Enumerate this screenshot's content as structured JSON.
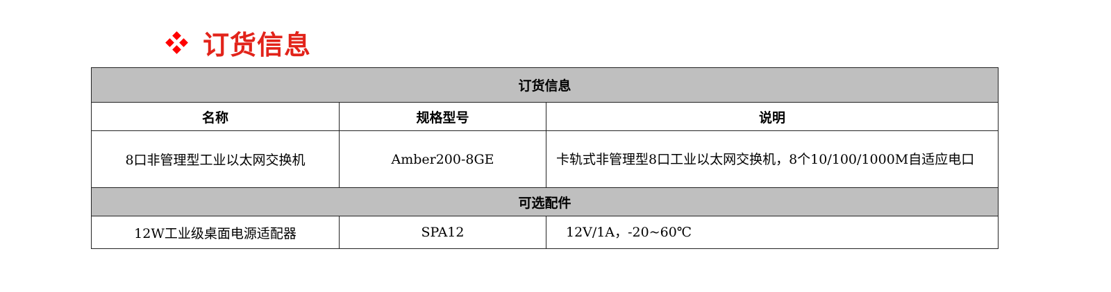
{
  "heading": {
    "text": "订货信息",
    "bullet_icon": "diamond-bullet-icon",
    "color": "#e2231a"
  },
  "table": {
    "section1_title": "订货信息",
    "columns": [
      "名称",
      "规格型号",
      "说明"
    ],
    "products": [
      {
        "name": "8口非管理型工业以太网交换机",
        "model": "Amber200-8GE",
        "description": "卡轨式非管理型8口工业以太网交换机，8个10/100/1000M自适应电口"
      }
    ],
    "section2_title": "可选配件",
    "accessories": [
      {
        "name": "12W工业级桌面电源适配器",
        "model": "SPA12",
        "description": "12V/1A，-20~60℃"
      }
    ]
  }
}
